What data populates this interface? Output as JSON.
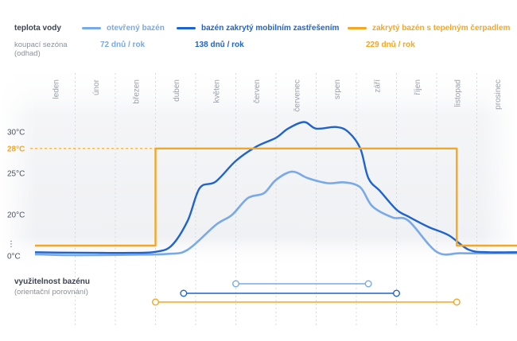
{
  "legend": {
    "header": "teplota vody",
    "season_label_line1": "koupací sezóna",
    "season_label_line2": "(odhad)"
  },
  "series_meta": [
    {
      "name": "otevřený bazén",
      "season": "72 dnů / rok",
      "color": "#78a9e8"
    },
    {
      "name": "bazén zakrytý mobilním zastřešením",
      "season": "138 dnů / rok",
      "color": "#1f63cc"
    },
    {
      "name": "zakrytý bazén s tepelným čerpadlem",
      "season": "229 dnů / rok",
      "color": "#f5a623"
    }
  ],
  "usage": {
    "title": "využitelnost bazénu",
    "subtitle": "(orientační porovnání)"
  },
  "chart_data": {
    "type": "line",
    "x_categories": [
      "leden",
      "únor",
      "březen",
      "duben",
      "květen",
      "červen",
      "červenec",
      "srpen",
      "září",
      "říjen",
      "listopad",
      "prosinec"
    ],
    "y_ticks": [
      {
        "label": "0°C",
        "value": 0
      },
      {
        "label": "⋮",
        "value": 6
      },
      {
        "label": "20°C",
        "value": 20
      },
      {
        "label": "25°C",
        "value": 25
      },
      {
        "label": "28°C",
        "value": 28
      },
      {
        "label": "30°C",
        "value": 30
      }
    ],
    "y_scale": "broken axis 0–20 compressed",
    "reference_line": {
      "value": 28,
      "color": "#f5a623"
    },
    "series": [
      {
        "name": "otevřený bazén",
        "color": "#78a9e8",
        "points": [
          [
            0,
            0.8
          ],
          [
            0.8,
            0.4
          ],
          [
            1.5,
            0.4
          ],
          [
            2.4,
            0.6
          ],
          [
            3.3,
            1.0
          ],
          [
            3.8,
            3.0
          ],
          [
            4.5,
            15.0
          ],
          [
            4.9,
            19.8
          ],
          [
            5.3,
            22.0
          ],
          [
            5.7,
            22.6
          ],
          [
            6.0,
            24.2
          ],
          [
            6.4,
            25.2
          ],
          [
            6.8,
            24.4
          ],
          [
            7.3,
            23.8
          ],
          [
            7.7,
            23.9
          ],
          [
            8.1,
            23.3
          ],
          [
            8.4,
            21.0
          ],
          [
            8.9,
            18.6
          ],
          [
            9.3,
            17.0
          ],
          [
            10.0,
            2.0
          ],
          [
            10.6,
            1.3
          ],
          [
            11.5,
            1.3
          ],
          [
            12.0,
            1.3
          ]
        ]
      },
      {
        "name": "bazén zakrytý mobilním zastřešením",
        "color": "#1f63cc",
        "points": [
          [
            0,
            1.8
          ],
          [
            0.7,
            1.6
          ],
          [
            1.5,
            1.5
          ],
          [
            2.4,
            1.5
          ],
          [
            3.0,
            2.0
          ],
          [
            3.4,
            5.0
          ],
          [
            3.8,
            17.0
          ],
          [
            4.1,
            23.2
          ],
          [
            4.5,
            24.0
          ],
          [
            5.0,
            26.5
          ],
          [
            5.5,
            28.2
          ],
          [
            6.0,
            29.3
          ],
          [
            6.3,
            30.4
          ],
          [
            6.7,
            31.2
          ],
          [
            7.0,
            30.4
          ],
          [
            7.5,
            30.6
          ],
          [
            7.8,
            30.0
          ],
          [
            8.1,
            28.0
          ],
          [
            8.3,
            24.4
          ],
          [
            8.6,
            22.8
          ],
          [
            9.0,
            20.6
          ],
          [
            9.3,
            19.0
          ],
          [
            9.8,
            14.0
          ],
          [
            10.3,
            10.0
          ],
          [
            10.8,
            3.0
          ],
          [
            11.3,
            1.8
          ],
          [
            12.0,
            1.8
          ]
        ]
      },
      {
        "name": "zakrytý bazén s tepelným čerpadlem",
        "color": "#f5a623",
        "points": [
          [
            0,
            5.0
          ],
          [
            3.0,
            5.0
          ],
          [
            3.0,
            28.0
          ],
          [
            10.5,
            28.0
          ],
          [
            10.5,
            5.0
          ],
          [
            12.0,
            5.0
          ]
        ]
      }
    ],
    "usage_ranges": [
      {
        "series": "otevřený bazén",
        "start": 5.0,
        "end": 8.3,
        "color": "#78a9e8"
      },
      {
        "series": "bazén zakrytý mobilním zastřešením",
        "start": 3.7,
        "end": 9.0,
        "color": "#1f63cc"
      },
      {
        "series": "zakrytý bazén s tepelným čerpadlem",
        "start": 3.0,
        "end": 10.5,
        "color": "#f5a623"
      }
    ]
  }
}
